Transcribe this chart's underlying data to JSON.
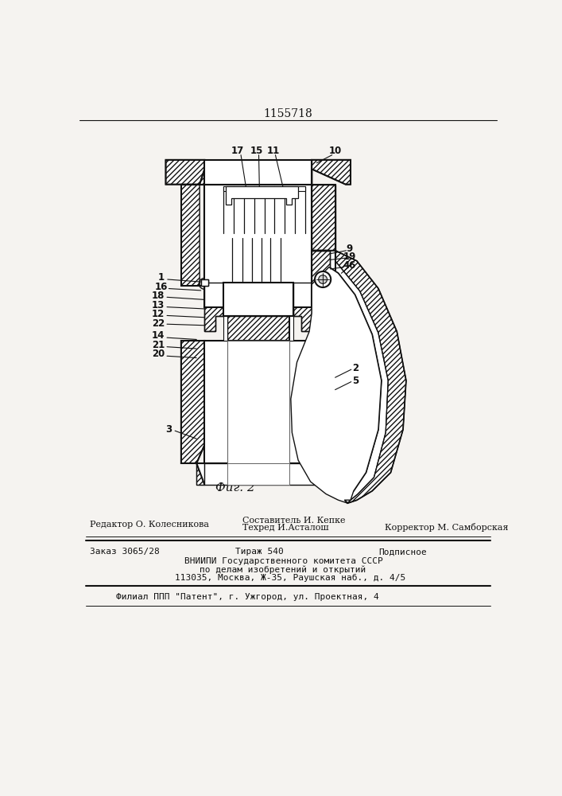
{
  "patent_number": "1155718",
  "figure_caption": "Фиг. 2",
  "bg": "#f5f3f0",
  "lc": "#111111",
  "footer": {
    "line1_left": "Редактор О. Колесникова",
    "line1_center_top": "Составитель И. Кепке",
    "line1_center_bot": "Техред И.Асталош",
    "line1_right": "Корректор М. Самборская",
    "line2_left": "Заказ 3065/28",
    "line2_center": "Тираж 540",
    "line2_right": "Подписное",
    "line3": "ВНИИПИ Государственного комитета СССР",
    "line4": "по делам изобретений и открытий",
    "line5": "113035, Москва, Ж-35, Раушская наб., д. 4/5",
    "line6": "Филиал ППП \"Патент\", г. Ужгород, ул. Проектная, 4"
  }
}
